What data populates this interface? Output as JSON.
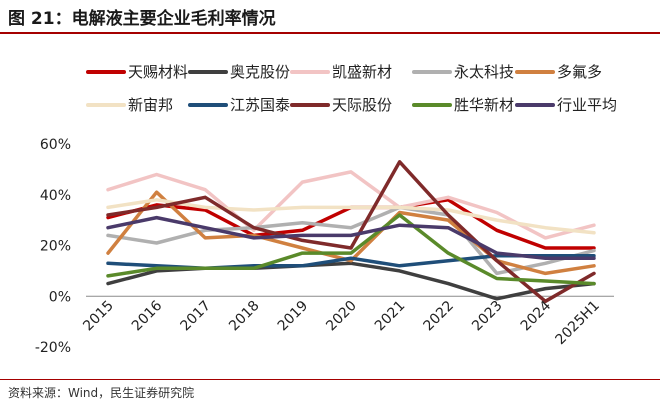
{
  "header": {
    "title": "图 21：电解液主要企业毛利率情况"
  },
  "footer": {
    "source": "资料来源：Wind，民生证券研究院"
  },
  "chart_data": {
    "type": "line",
    "title": "",
    "xlabel": "",
    "ylabel": "",
    "categories": [
      "2015",
      "2016",
      "2017",
      "2018",
      "2019",
      "2020",
      "2021",
      "2022",
      "2023",
      "2024",
      "2025H1"
    ],
    "ylim": [
      -0.2,
      0.6
    ],
    "yticks": [
      -0.2,
      0,
      0.2,
      0.4,
      0.6
    ],
    "ytick_labels": [
      "-20%",
      "0%",
      "20%",
      "40%",
      "60%"
    ],
    "grid": false,
    "legend_position": "top",
    "series": [
      {
        "name": "天赐材料",
        "color": "#c00000",
        "values": [
          0.31,
          0.36,
          0.34,
          0.24,
          0.26,
          0.35,
          0.35,
          0.38,
          0.26,
          0.19,
          0.19
        ]
      },
      {
        "name": "奥克股份",
        "color": "#3f3f3f",
        "values": [
          0.05,
          0.1,
          0.11,
          0.11,
          0.12,
          0.13,
          0.1,
          0.05,
          -0.01,
          0.03,
          0.05
        ]
      },
      {
        "name": "凯盛新材",
        "color": "#f2c4c4",
        "values": [
          0.42,
          0.48,
          0.42,
          0.26,
          0.45,
          0.49,
          0.35,
          0.39,
          0.33,
          0.23,
          0.28
        ]
      },
      {
        "name": "永太科技",
        "color": "#b0b0b0",
        "values": [
          0.24,
          0.21,
          0.26,
          0.27,
          0.29,
          0.27,
          0.35,
          0.32,
          0.09,
          0.13,
          0.18
        ]
      },
      {
        "name": "多氟多",
        "color": "#d08040",
        "values": [
          0.17,
          0.41,
          0.23,
          0.24,
          0.19,
          0.14,
          0.33,
          0.3,
          0.14,
          0.09,
          0.12
        ]
      },
      {
        "name": "新宙邦",
        "color": "#f2e2c4",
        "values": [
          0.35,
          0.38,
          0.35,
          0.34,
          0.35,
          0.35,
          0.35,
          0.34,
          0.3,
          0.27,
          0.25
        ]
      },
      {
        "name": "江苏国泰",
        "color": "#1f4e79",
        "values": [
          0.13,
          0.12,
          0.11,
          0.12,
          0.12,
          0.15,
          0.12,
          0.14,
          0.16,
          0.16,
          0.16
        ]
      },
      {
        "name": "天际股份",
        "color": "#7f2a2a",
        "values": [
          0.32,
          0.35,
          0.39,
          0.27,
          0.22,
          0.19,
          0.53,
          0.32,
          0.14,
          -0.02,
          0.09
        ]
      },
      {
        "name": "胜华新材",
        "color": "#5a8a2a",
        "values": [
          0.08,
          0.11,
          0.11,
          0.11,
          0.17,
          0.17,
          0.32,
          0.17,
          0.07,
          0.06,
          0.05
        ]
      },
      {
        "name": "行业平均",
        "color": "#4a3a6a",
        "values": [
          0.27,
          0.31,
          0.27,
          0.23,
          0.24,
          0.24,
          0.28,
          0.27,
          0.17,
          0.15,
          0.15
        ]
      }
    ]
  }
}
